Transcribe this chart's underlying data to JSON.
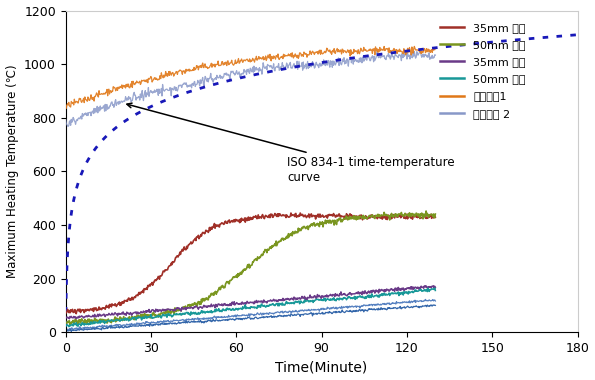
{
  "xlabel": "Time(Minute)",
  "ylabel": "Maximum Heating Temperature (℃)",
  "xlim": [
    0,
    180
  ],
  "ylim": [
    0,
    1200
  ],
  "xticks": [
    0,
    30,
    60,
    90,
    120,
    150,
    180
  ],
  "yticks": [
    0,
    200,
    400,
    600,
    800,
    1000,
    1200
  ],
  "annotation_text": "ISO 834-1 time-temperature\ncurve",
  "annotation_arrowxy": [
    20,
    855
  ],
  "annotation_textxy": [
    78,
    658
  ],
  "legend_entries": [
    "35mm 단판",
    "50mm 단판",
    "35mm 복판",
    "50mm 복판",
    "내부온도1",
    "내부온도 2"
  ],
  "legend_colors": [
    "#a03028",
    "#7a9620",
    "#6a3a88",
    "#189898",
    "#e07818",
    "#8898c8"
  ],
  "iso_color": "#1818b8",
  "line1_color": "#e07818",
  "line2_color": "#9aaccc",
  "extra_line1_color": "#4488cc",
  "extra_line2_color": "#6688aa",
  "background_color": "#ffffff",
  "figsize": [
    5.95,
    3.8
  ],
  "dpi": 100,
  "t_max": 130
}
